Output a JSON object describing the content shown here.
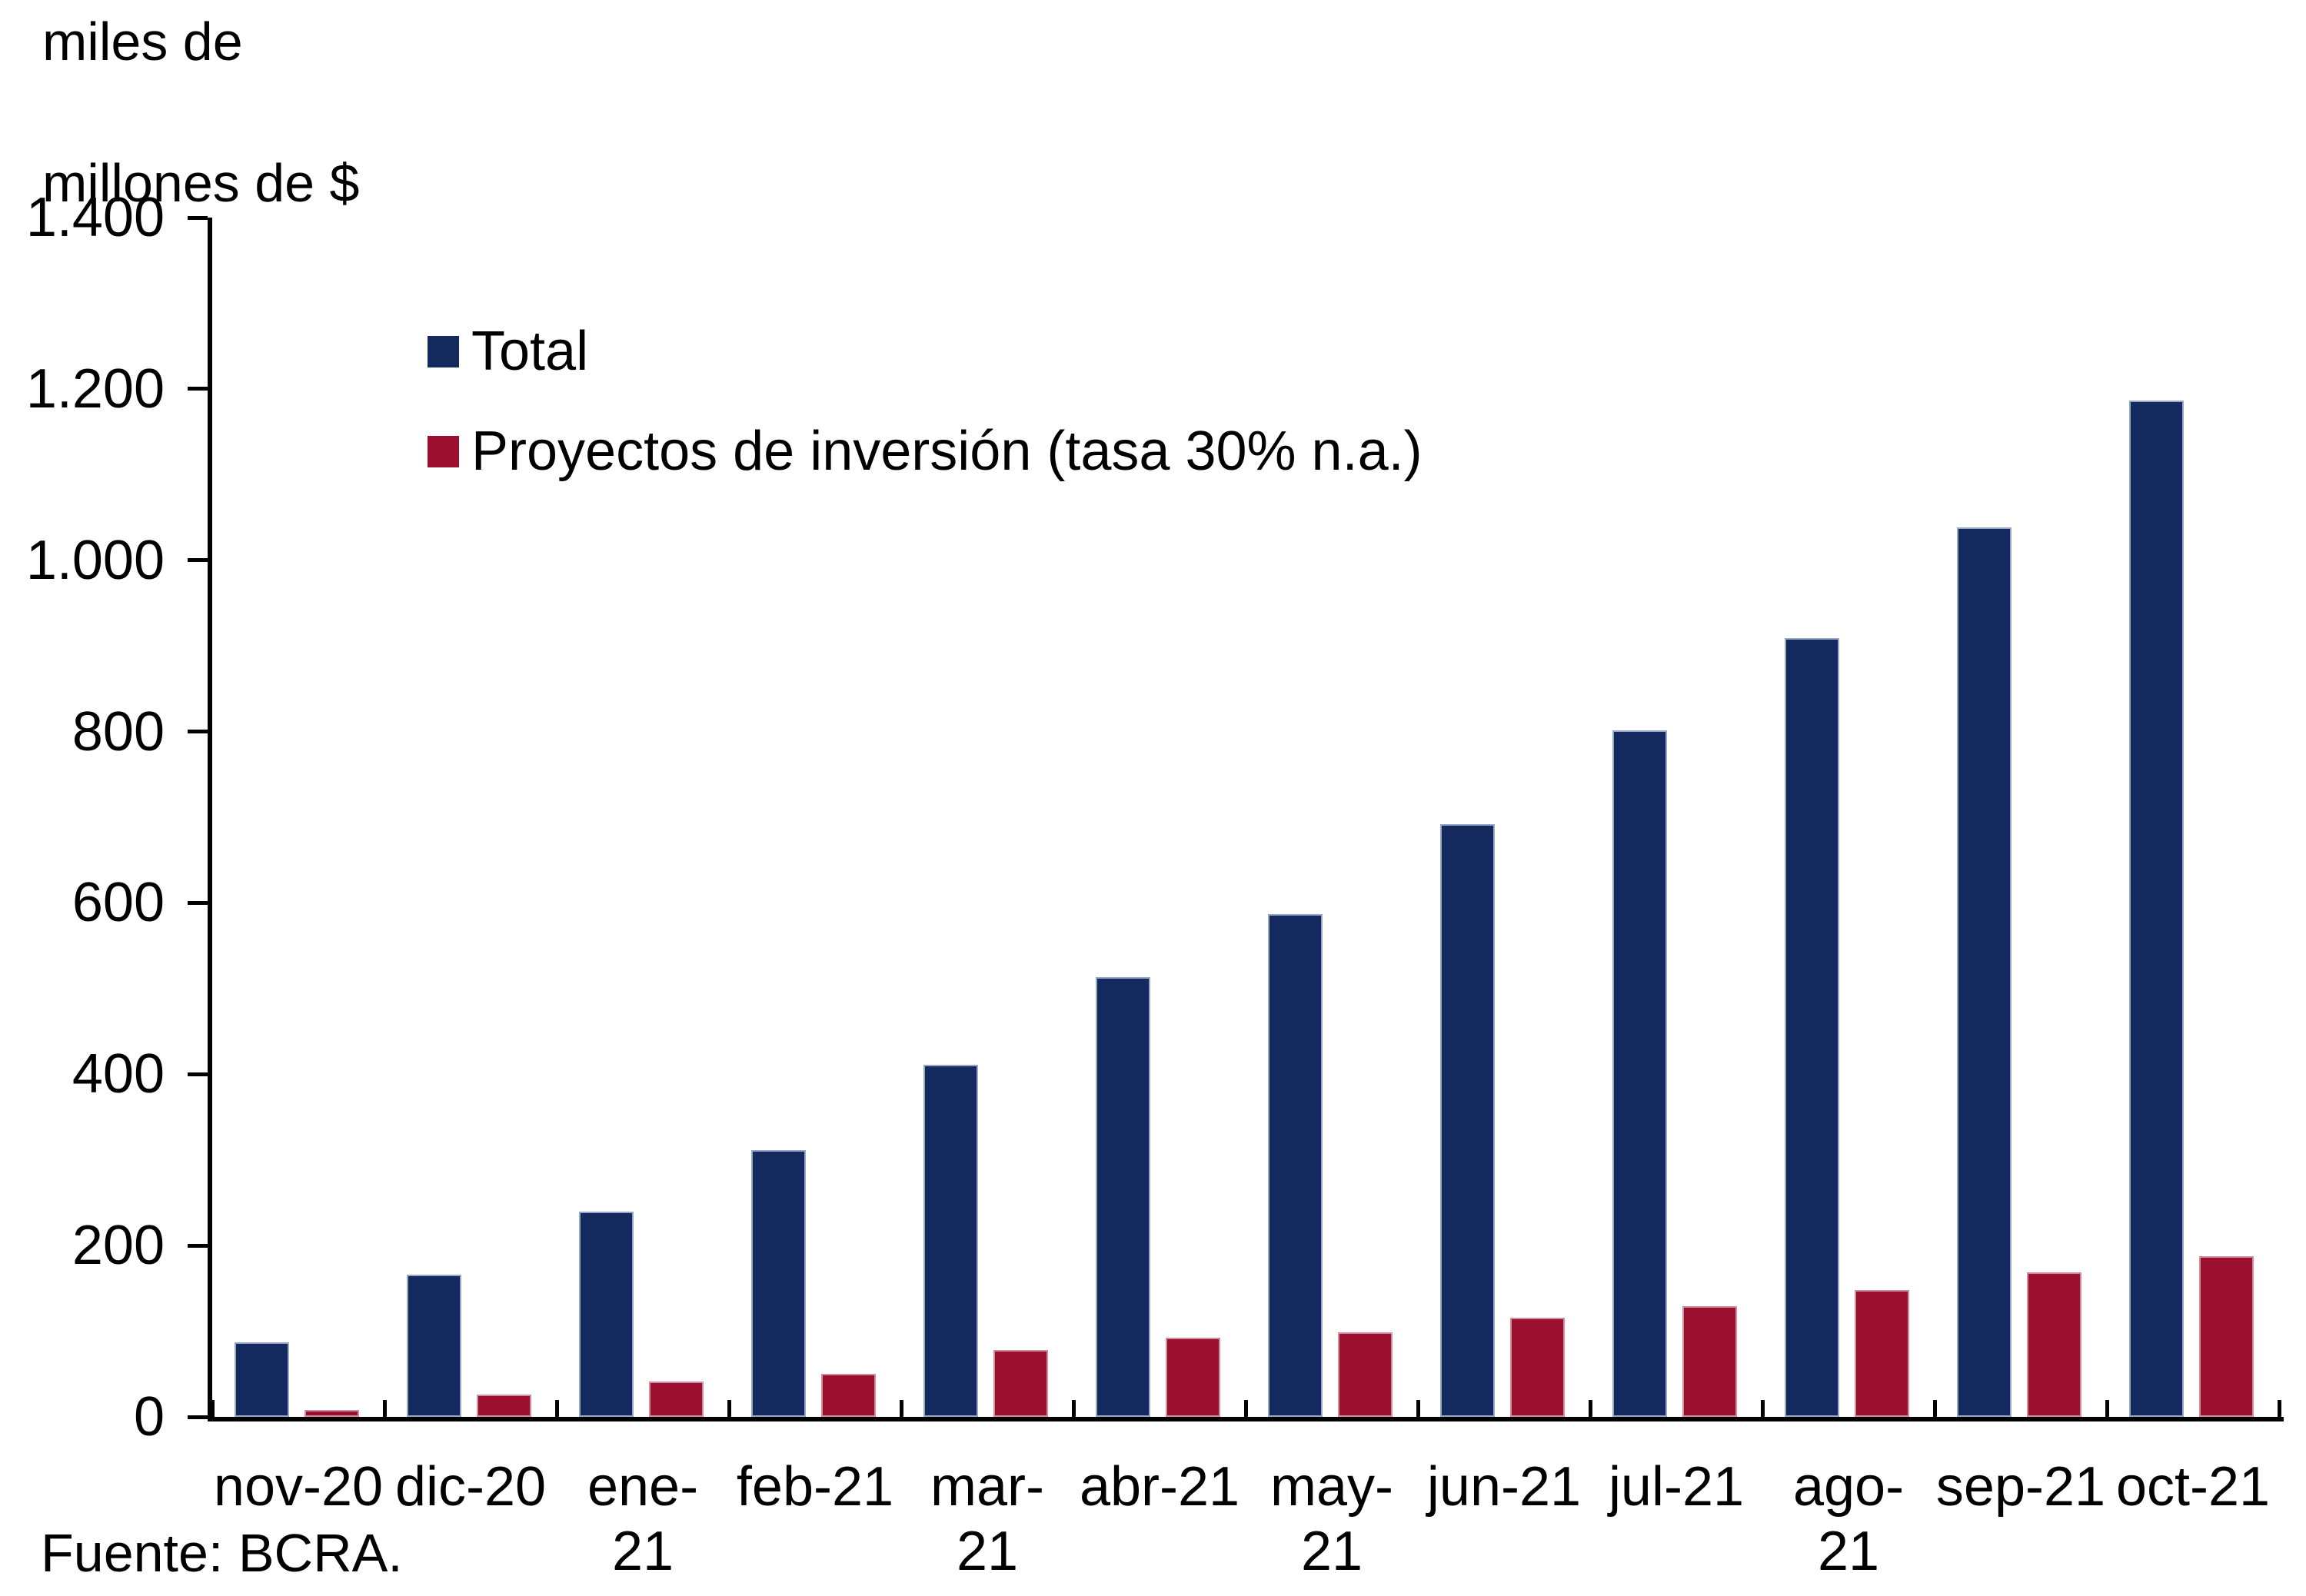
{
  "title": {
    "line1": "miles de",
    "line2": "millones de $"
  },
  "source": "Fuente: BCRA.",
  "legend": [
    {
      "label": "Total",
      "color": "#142a5e"
    },
    {
      "label": "Proyectos de inversión (tasa 30% n.a.)",
      "color": "#9c0f2f"
    }
  ],
  "y_axis": {
    "tick_labels": [
      "1.400",
      "1.200",
      "1.000",
      "800",
      "600",
      "400",
      "200",
      "0"
    ],
    "tick_values": [
      1400,
      1200,
      1000,
      800,
      600,
      400,
      200,
      0
    ]
  },
  "chart_data": {
    "type": "bar",
    "title": "",
    "ylabel": "miles de millones de $",
    "xlabel": "",
    "ylim": [
      0,
      1400
    ],
    "y_tick_step": 200,
    "grid": false,
    "legend_position": "top-left-inside",
    "categories": [
      "nov-20",
      "dic-20",
      "ene-21",
      "feb-21",
      "mar-21",
      "abr-21",
      "may-21",
      "jun-21",
      "jul-21",
      "ago-21",
      "sep-21",
      "oct-21"
    ],
    "series": [
      {
        "name": "Total",
        "color": "#142a5e",
        "values": [
          87,
          166,
          240,
          311,
          411,
          513,
          587,
          692,
          801,
          909,
          1038,
          1186
        ]
      },
      {
        "name": "Proyectos de inversión (tasa 30% n.a.)",
        "color": "#9c0f2f",
        "values": [
          8,
          26,
          41,
          50,
          78,
          92,
          99,
          116,
          129,
          148,
          169,
          188
        ]
      }
    ]
  }
}
